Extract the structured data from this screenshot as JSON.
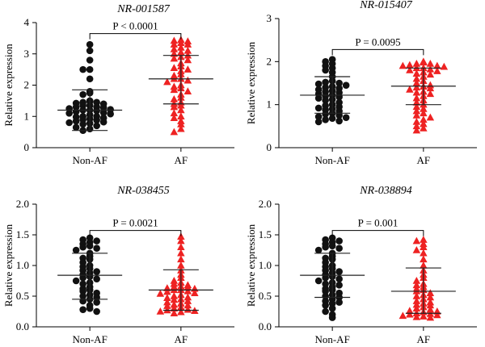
{
  "chart_data": [
    {
      "type": "scatter",
      "title": "NR-001587",
      "title_prefix": "NR",
      "title_suffix": "-001587",
      "ylabel": "Relative expression",
      "categories": [
        "Non-AF",
        "AF"
      ],
      "ylim": [
        0,
        4
      ],
      "yticks": [
        0,
        1,
        2,
        3,
        4
      ],
      "ytick_labels": [
        "0",
        "1",
        "2",
        "3",
        "4"
      ],
      "pvalue_label": "P < 0.0001",
      "pvalue_prefix": "P",
      "pvalue_suffix": " < 0.0001",
      "bracket_y": 3.65,
      "series": [
        {
          "category": "Non-AF",
          "marker": "circle",
          "color": "#111111",
          "mean": 1.2,
          "sd_low": 0.55,
          "sd_high": 1.85,
          "values": [
            3.3,
            3.1,
            2.8,
            2.5,
            2.5,
            2.2,
            1.8,
            1.75,
            1.7,
            1.5,
            1.48,
            1.45,
            1.45,
            1.42,
            1.4,
            1.35,
            1.35,
            1.3,
            1.3,
            1.28,
            1.25,
            1.22,
            1.2,
            1.2,
            1.18,
            1.15,
            1.12,
            1.1,
            1.08,
            1.05,
            1.0,
            1.0,
            0.98,
            0.95,
            0.92,
            0.9,
            0.88,
            0.85,
            0.82,
            0.8,
            0.78,
            0.75,
            0.7,
            0.65,
            0.6,
            0.55
          ]
        },
        {
          "category": "AF",
          "marker": "triangle",
          "color": "#ee2222",
          "mean": 2.2,
          "sd_low": 1.4,
          "sd_high": 2.95,
          "values": [
            3.45,
            3.42,
            3.4,
            3.35,
            3.3,
            3.3,
            3.2,
            3.15,
            3.1,
            3.05,
            3.0,
            2.95,
            2.9,
            2.85,
            2.8,
            2.7,
            2.6,
            2.55,
            2.5,
            2.45,
            2.35,
            2.3,
            2.2,
            2.2,
            2.15,
            2.1,
            2.0,
            1.95,
            1.9,
            1.85,
            1.8,
            1.7,
            1.6,
            1.55,
            1.45,
            1.4,
            1.35,
            1.3,
            1.2,
            1.1,
            1.0,
            0.95,
            0.85,
            0.75,
            0.6,
            0.5
          ]
        }
      ]
    },
    {
      "type": "scatter",
      "title": "NR-015407",
      "title_prefix": "NR",
      "title_suffix": "-015407",
      "ylabel": "Relative expression",
      "categories": [
        "Non-AF",
        "AF"
      ],
      "ylim": [
        0,
        3
      ],
      "yticks": [
        0,
        1,
        2,
        3
      ],
      "ytick_labels": [
        "0",
        "1",
        "2",
        "3"
      ],
      "pvalue_label": "P = 0.0095",
      "pvalue_prefix": "P",
      "pvalue_suffix": " = 0.0095",
      "bracket_y": 2.28,
      "series": [
        {
          "category": "Non-AF",
          "marker": "circle",
          "color": "#111111",
          "mean": 1.22,
          "sd_low": 0.8,
          "sd_high": 1.65,
          "values": [
            2.05,
            2.0,
            1.95,
            1.9,
            1.85,
            1.8,
            1.75,
            1.65,
            1.55,
            1.52,
            1.5,
            1.48,
            1.45,
            1.42,
            1.4,
            1.38,
            1.35,
            1.32,
            1.3,
            1.28,
            1.25,
            1.22,
            1.2,
            1.18,
            1.15,
            1.12,
            1.1,
            1.05,
            1.0,
            0.98,
            0.95,
            0.92,
            0.9,
            0.88,
            0.85,
            0.8,
            0.78,
            0.75,
            0.72,
            0.7,
            0.68,
            0.65,
            0.62,
            0.6
          ]
        },
        {
          "category": "AF",
          "marker": "triangle",
          "color": "#ee2222",
          "mean": 1.43,
          "sd_low": 1.0,
          "sd_high": 1.85,
          "values": [
            2.0,
            1.98,
            1.95,
            1.95,
            1.92,
            1.9,
            1.9,
            1.88,
            1.85,
            1.85,
            1.82,
            1.8,
            1.78,
            1.75,
            1.72,
            1.7,
            1.65,
            1.6,
            1.55,
            1.5,
            1.45,
            1.42,
            1.4,
            1.38,
            1.35,
            1.3,
            1.28,
            1.25,
            1.2,
            1.15,
            1.1,
            1.05,
            1.0,
            0.95,
            0.9,
            0.85,
            0.8,
            0.75,
            0.7,
            0.65,
            0.6,
            0.55,
            0.5,
            0.45,
            0.4
          ]
        }
      ]
    },
    {
      "type": "scatter",
      "title": "NR-038455",
      "title_prefix": "NR",
      "title_suffix": "-038455",
      "ylabel": "Relative expression",
      "categories": [
        "Non-AF",
        "AF"
      ],
      "ylim": [
        0,
        2
      ],
      "yticks": [
        0,
        0.5,
        1,
        1.5,
        2
      ],
      "ytick_labels": [
        "0.0",
        "0.5",
        "1.0",
        "1.5",
        "2.0"
      ],
      "pvalue_label": "P = 0.0021",
      "pvalue_prefix": "P",
      "pvalue_suffix": " = 0.0021",
      "bracket_y": 1.57,
      "series": [
        {
          "category": "Non-AF",
          "marker": "circle",
          "color": "#111111",
          "mean": 0.84,
          "sd_low": 0.45,
          "sd_high": 1.2,
          "values": [
            1.45,
            1.42,
            1.4,
            1.38,
            1.35,
            1.32,
            1.3,
            1.28,
            1.25,
            1.2,
            1.15,
            1.12,
            1.1,
            1.05,
            1.0,
            0.98,
            0.95,
            0.92,
            0.9,
            0.88,
            0.85,
            0.82,
            0.8,
            0.78,
            0.75,
            0.72,
            0.7,
            0.65,
            0.62,
            0.6,
            0.58,
            0.55,
            0.52,
            0.5,
            0.48,
            0.45,
            0.42,
            0.4,
            0.35,
            0.3,
            0.28,
            0.25
          ]
        },
        {
          "category": "AF",
          "marker": "triangle",
          "color": "#ee2222",
          "mean": 0.6,
          "sd_low": 0.27,
          "sd_high": 0.93,
          "values": [
            1.47,
            1.4,
            1.3,
            1.2,
            1.1,
            1.0,
            0.92,
            0.85,
            0.8,
            0.75,
            0.72,
            0.7,
            0.68,
            0.66,
            0.65,
            0.64,
            0.63,
            0.62,
            0.6,
            0.6,
            0.58,
            0.57,
            0.55,
            0.54,
            0.52,
            0.5,
            0.48,
            0.47,
            0.45,
            0.44,
            0.42,
            0.4,
            0.38,
            0.36,
            0.35,
            0.34,
            0.32,
            0.3,
            0.28,
            0.27,
            0.26,
            0.25,
            0.24,
            0.22
          ]
        }
      ]
    },
    {
      "type": "scatter",
      "title": "NR-038894",
      "title_prefix": "NR",
      "title_suffix": "-038894",
      "ylabel": "Relative expression",
      "categories": [
        "Non-AF",
        "AF"
      ],
      "ylim": [
        0,
        2
      ],
      "yticks": [
        0,
        0.5,
        1,
        1.5,
        2
      ],
      "ytick_labels": [
        "0.0",
        "0.5",
        "1.0",
        "1.5",
        "2.0"
      ],
      "pvalue_label": "P = 0.001",
      "pvalue_prefix": "P",
      "pvalue_suffix": " = 0.001",
      "bracket_y": 1.57,
      "series": [
        {
          "category": "Non-AF",
          "marker": "circle",
          "color": "#111111",
          "mean": 0.84,
          "sd_low": 0.48,
          "sd_high": 1.2,
          "values": [
            1.45,
            1.42,
            1.4,
            1.38,
            1.35,
            1.32,
            1.3,
            1.28,
            1.25,
            1.2,
            1.15,
            1.12,
            1.1,
            1.05,
            1.0,
            0.98,
            0.95,
            0.92,
            0.9,
            0.88,
            0.85,
            0.82,
            0.8,
            0.78,
            0.75,
            0.72,
            0.7,
            0.68,
            0.65,
            0.62,
            0.6,
            0.58,
            0.55,
            0.52,
            0.5,
            0.48,
            0.45,
            0.42,
            0.4,
            0.38,
            0.35,
            0.3,
            0.25,
            0.2,
            0.15
          ]
        },
        {
          "category": "AF",
          "marker": "triangle",
          "color": "#ee2222",
          "mean": 0.58,
          "sd_low": 0.22,
          "sd_high": 0.96,
          "values": [
            1.42,
            1.4,
            1.35,
            1.3,
            1.25,
            1.2,
            1.1,
            1.0,
            0.92,
            0.85,
            0.8,
            0.75,
            0.7,
            0.68,
            0.65,
            0.62,
            0.6,
            0.58,
            0.55,
            0.52,
            0.5,
            0.48,
            0.45,
            0.42,
            0.4,
            0.38,
            0.36,
            0.35,
            0.32,
            0.3,
            0.28,
            0.26,
            0.25,
            0.24,
            0.22,
            0.21,
            0.2,
            0.19,
            0.18,
            0.17,
            0.16,
            0.15
          ]
        }
      ]
    }
  ]
}
